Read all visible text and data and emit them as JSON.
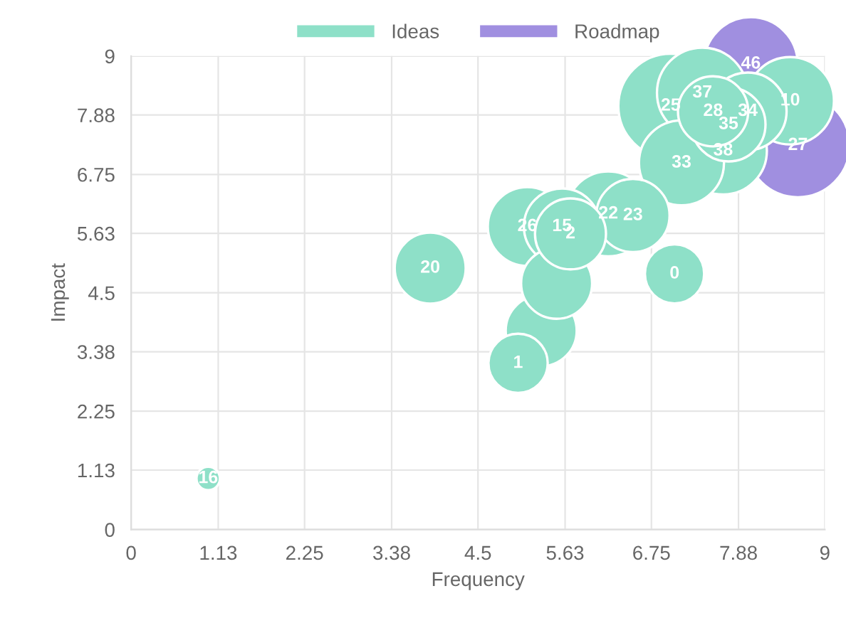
{
  "chart_data": {
    "type": "bubble",
    "xlabel": "Frequency",
    "ylabel": "Impact",
    "xlim": [
      0,
      9
    ],
    "xticks": [
      0,
      1.13,
      2.25,
      3.38,
      4.5,
      5.63,
      6.75,
      7.88,
      9
    ],
    "ylim": [
      0,
      9
    ],
    "yticks": [
      0,
      1.13,
      2.25,
      3.38,
      4.5,
      5.63,
      6.75,
      7.88,
      9
    ],
    "grid": true,
    "legend": "top",
    "series": [
      {
        "name": "Ideas",
        "color": "#8ee0c8",
        "x": [
          1.0,
          3.88,
          5.02,
          5.32,
          5.52,
          5.14,
          5.59,
          5.7,
          6.19,
          6.51,
          7.05,
          7.14,
          7.68,
          7.41,
          7.75,
          7.55,
          8.0,
          7.0,
          8.55
        ],
        "values": [
          0.97,
          4.97,
          3.16,
          3.78,
          4.68,
          5.76,
          5.76,
          5.62,
          6.0,
          5.97,
          4.86,
          6.97,
          7.2,
          8.3,
          7.7,
          7.95,
          7.95,
          8.05,
          8.15
        ],
        "sizes": [
          0.05,
          0.46,
          0.32,
          0.46,
          0.46,
          0.57,
          0.53,
          0.46,
          0.66,
          0.49,
          0.32,
          0.66,
          0.7,
          0.75,
          0.5,
          0.45,
          0.55,
          1,
          0.7
        ]
      },
      {
        "name": "Roadmap",
        "color": "#a08fe0",
        "x": [
          8.04,
          8.65
        ],
        "values": [
          8.85,
          7.3
        ],
        "sizes": [
          0.8,
          0.98
        ]
      }
    ],
    "annotations": [
      {
        "text": "16",
        "x": 1.0,
        "y": 0.97
      },
      {
        "text": "20",
        "x": 3.88,
        "y": 4.97
      },
      {
        "text": "1",
        "x": 5.02,
        "y": 3.16
      },
      {
        "text": "26",
        "x": 5.14,
        "y": 5.76
      },
      {
        "text": "15",
        "x": 5.59,
        "y": 5.76
      },
      {
        "text": "2",
        "x": 5.7,
        "y": 5.62
      },
      {
        "text": "22",
        "x": 6.19,
        "y": 6.0
      },
      {
        "text": "23",
        "x": 6.51,
        "y": 5.97
      },
      {
        "text": "0",
        "x": 7.05,
        "y": 4.86
      },
      {
        "text": "33",
        "x": 7.14,
        "y": 6.97
      },
      {
        "text": "38",
        "x": 7.68,
        "y": 7.2
      },
      {
        "text": "37",
        "x": 7.41,
        "y": 8.3
      },
      {
        "text": "35",
        "x": 7.75,
        "y": 7.7
      },
      {
        "text": "28",
        "x": 7.55,
        "y": 7.95
      },
      {
        "text": "34",
        "x": 8.0,
        "y": 7.95
      },
      {
        "text": "25",
        "x": 7.0,
        "y": 8.05
      },
      {
        "text": "10",
        "x": 8.55,
        "y": 8.15
      },
      {
        "text": "46",
        "x": 8.04,
        "y": 8.85
      },
      {
        "text": "27",
        "x": 8.65,
        "y": 7.3
      }
    ]
  }
}
